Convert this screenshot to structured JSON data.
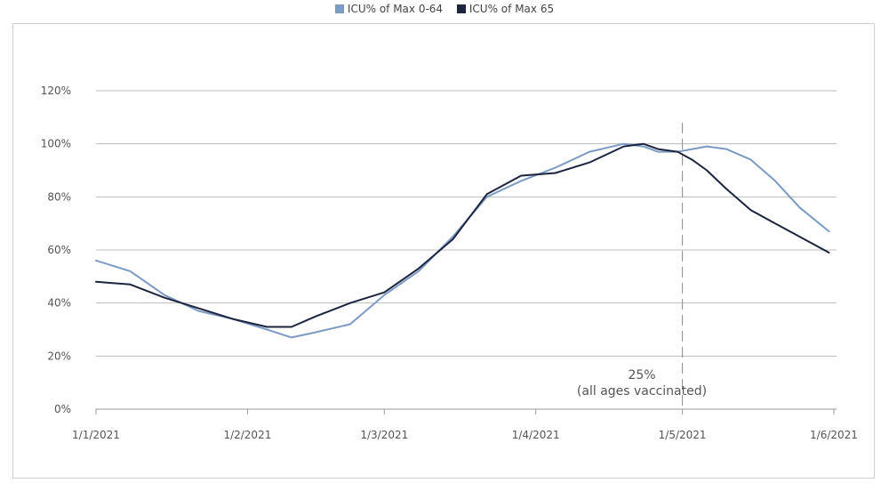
{
  "chart_data": {
    "type": "line",
    "title": "",
    "xlabel": "",
    "ylabel": "",
    "ylim": [
      0,
      1.2
    ],
    "ytick_values": [
      0,
      0.2,
      0.4,
      0.6,
      0.8,
      1.0,
      1.2
    ],
    "ytick_labels": [
      "0%",
      "20%",
      "40%",
      "60%",
      "80%",
      "100%",
      "120%"
    ],
    "xtick_labels": [
      "1/1/2021",
      "1/2/2021",
      "1/3/2021",
      "1/4/2021",
      "1/5/2021",
      "1/6/2021"
    ],
    "xtick_dates": [
      "2021-01-01",
      "2021-02-01",
      "2021-03-01",
      "2021-04-01",
      "2021-05-01",
      "2021-06-01"
    ],
    "grid": "horizontal",
    "legend_position": "top",
    "series": [
      {
        "name": "ICU% of Max 0-64",
        "color": "#7b9ac4",
        "x": [
          "2021-01-01",
          "2021-01-08",
          "2021-01-15",
          "2021-01-22",
          "2021-01-29",
          "2021-02-05",
          "2021-02-10",
          "2021-02-15",
          "2021-02-22",
          "2021-03-01",
          "2021-03-08",
          "2021-03-15",
          "2021-03-22",
          "2021-03-29",
          "2021-04-05",
          "2021-04-12",
          "2021-04-19",
          "2021-04-23",
          "2021-04-26",
          "2021-04-30",
          "2021-05-03",
          "2021-05-06",
          "2021-05-10",
          "2021-05-15",
          "2021-05-20",
          "2021-05-25",
          "2021-05-31"
        ],
        "values": [
          0.56,
          0.52,
          0.43,
          0.37,
          0.34,
          0.3,
          0.27,
          0.29,
          0.32,
          0.43,
          0.52,
          0.65,
          0.8,
          0.86,
          0.91,
          0.97,
          1.0,
          0.99,
          0.97,
          0.97,
          0.98,
          0.99,
          0.98,
          0.94,
          0.86,
          0.76,
          0.67
        ]
      },
      {
        "name": "ICU% of Max 65",
        "color": "#1c2440",
        "x": [
          "2021-01-01",
          "2021-01-08",
          "2021-01-15",
          "2021-01-22",
          "2021-01-29",
          "2021-02-05",
          "2021-02-10",
          "2021-02-15",
          "2021-02-22",
          "2021-03-01",
          "2021-03-08",
          "2021-03-15",
          "2021-03-22",
          "2021-03-29",
          "2021-04-05",
          "2021-04-12",
          "2021-04-19",
          "2021-04-23",
          "2021-04-26",
          "2021-04-30",
          "2021-05-03",
          "2021-05-06",
          "2021-05-10",
          "2021-05-15",
          "2021-05-20",
          "2021-05-25",
          "2021-05-31"
        ],
        "values": [
          0.48,
          0.47,
          0.42,
          0.38,
          0.34,
          0.31,
          0.31,
          0.35,
          0.4,
          0.44,
          0.53,
          0.64,
          0.81,
          0.88,
          0.89,
          0.93,
          0.99,
          1.0,
          0.98,
          0.97,
          0.94,
          0.9,
          0.83,
          0.75,
          0.7,
          0.65,
          0.59
        ]
      }
    ],
    "annotation": {
      "x": "2021-05-01",
      "line1": "25%",
      "line2": "(all ages vaccinated)"
    }
  }
}
